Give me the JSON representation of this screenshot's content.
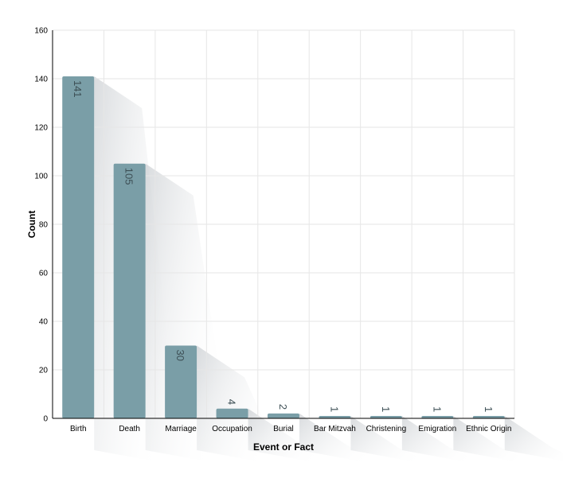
{
  "chart_data": {
    "type": "bar",
    "title": "",
    "xlabel": "Event or Fact",
    "ylabel": "Count",
    "ylim": [
      0,
      160
    ],
    "yticks": [
      0,
      20,
      40,
      60,
      80,
      100,
      120,
      140,
      160
    ],
    "grid": true,
    "categories": [
      "Birth",
      "Death",
      "Marriage",
      "Occupation",
      "Burial",
      "Bar Mitzvah",
      "Christening",
      "Emigration",
      "Ethnic Origin"
    ],
    "values": [
      141,
      105,
      30,
      4,
      2,
      1,
      1,
      1,
      1
    ],
    "bar_color": "#7a9ea7",
    "label_color": "#3d4f55",
    "data_labels_rotated": true
  }
}
